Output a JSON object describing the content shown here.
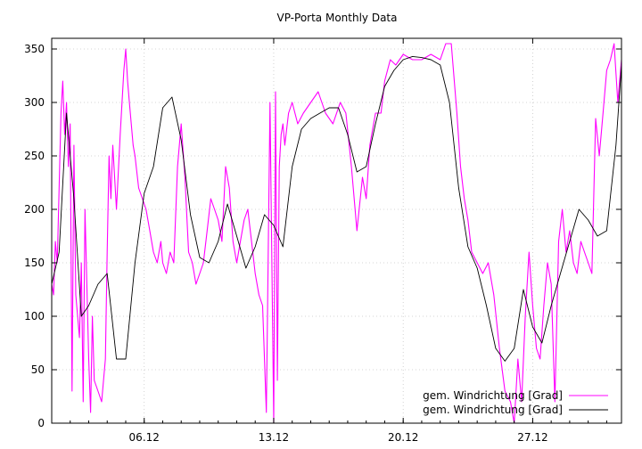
{
  "chart_data": {
    "type": "line",
    "title": "VP-Porta Monthly Data",
    "xlabel": "",
    "ylabel": "",
    "x_unit": "day of month (December)",
    "xlim": [
      1,
      31.8
    ],
    "ylim": [
      0,
      360
    ],
    "y_ticks": [
      0,
      50,
      100,
      150,
      200,
      250,
      300,
      350
    ],
    "x_ticks": [
      {
        "value": 6,
        "label": "06.12"
      },
      {
        "value": 13,
        "label": "13.12"
      },
      {
        "value": 20,
        "label": "20.12"
      },
      {
        "value": 27,
        "label": "27.12"
      }
    ],
    "grid": true,
    "legend_position": "bottom-right",
    "series": [
      {
        "name": "gem. Windrichtung [Grad]",
        "color": "#ff00ff",
        "style": "raw",
        "x": [
          1.0,
          1.1,
          1.2,
          1.3,
          1.5,
          1.6,
          1.7,
          1.8,
          1.9,
          2.0,
          2.1,
          2.2,
          2.3,
          2.5,
          2.6,
          2.7,
          2.8,
          2.9,
          3.0,
          3.1,
          3.2,
          3.3,
          3.5,
          3.7,
          3.9,
          4.0,
          4.1,
          4.2,
          4.3,
          4.5,
          4.7,
          4.9,
          5.0,
          5.1,
          5.2,
          5.3,
          5.4,
          5.5,
          5.7,
          5.9,
          6.1,
          6.3,
          6.5,
          6.7,
          6.9,
          7.0,
          7.2,
          7.4,
          7.6,
          7.8,
          8.0,
          8.2,
          8.4,
          8.6,
          8.8,
          9.0,
          9.2,
          9.4,
          9.6,
          9.8,
          10.0,
          10.2,
          10.4,
          10.6,
          10.8,
          11.0,
          11.2,
          11.4,
          11.6,
          11.8,
          12.0,
          12.2,
          12.4,
          12.6,
          12.8,
          13.0,
          13.1,
          13.2,
          13.3,
          13.4,
          13.5,
          13.6,
          13.8,
          14.0,
          14.3,
          14.6,
          15.0,
          15.4,
          15.8,
          16.2,
          16.6,
          16.9,
          17.2,
          17.5,
          17.8,
          18.0,
          18.2,
          18.5,
          18.8,
          19.0,
          19.3,
          19.6,
          20.0,
          20.5,
          21.0,
          21.5,
          22.0,
          22.3,
          22.6,
          22.9,
          23.1,
          23.3,
          23.5,
          23.7,
          24.0,
          24.3,
          24.6,
          24.9,
          25.2,
          25.5,
          25.8,
          26.0,
          26.2,
          26.4,
          26.6,
          26.8,
          27.0,
          27.2,
          27.4,
          27.6,
          27.8,
          28.0,
          28.2,
          28.4,
          28.6,
          28.8,
          29.0,
          29.2,
          29.4,
          29.6,
          29.8,
          30.0,
          30.2,
          30.4,
          30.6,
          30.8,
          31.0,
          31.2,
          31.4,
          31.6,
          31.7,
          31.8
        ],
        "values": [
          130,
          120,
          170,
          150,
          290,
          320,
          270,
          300,
          240,
          280,
          30,
          260,
          120,
          80,
          150,
          20,
          200,
          130,
          60,
          10,
          100,
          40,
          30,
          20,
          60,
          160,
          250,
          210,
          260,
          200,
          270,
          330,
          350,
          320,
          300,
          280,
          260,
          250,
          220,
          210,
          200,
          180,
          160,
          150,
          170,
          150,
          140,
          160,
          150,
          240,
          280,
          230,
          160,
          150,
          130,
          140,
          150,
          180,
          210,
          200,
          190,
          170,
          240,
          220,
          170,
          150,
          170,
          190,
          200,
          170,
          140,
          120,
          110,
          10,
          300,
          0,
          310,
          40,
          240,
          270,
          280,
          260,
          290,
          300,
          280,
          290,
          300,
          310,
          290,
          280,
          300,
          290,
          240,
          180,
          230,
          210,
          260,
          290,
          290,
          320,
          340,
          335,
          345,
          340,
          340,
          345,
          340,
          355,
          355,
          290,
          240,
          210,
          190,
          160,
          150,
          140,
          150,
          120,
          70,
          30,
          20,
          0,
          60,
          20,
          100,
          160,
          110,
          70,
          60,
          110,
          150,
          130,
          20,
          170,
          200,
          160,
          180,
          150,
          140,
          170,
          160,
          150,
          140,
          285,
          250,
          290,
          330,
          340,
          355,
          300,
          320,
          340
        ],
        "mark": "line"
      },
      {
        "name": "gem. Windrichtung [Grad]",
        "color": "#000000",
        "style": "smoothed",
        "x": [
          1.0,
          1.4,
          1.8,
          2.2,
          2.6,
          3.0,
          3.5,
          4.0,
          4.5,
          5.0,
          5.5,
          6.0,
          6.5,
          7.0,
          7.5,
          8.0,
          8.5,
          9.0,
          9.5,
          10.0,
          10.5,
          11.0,
          11.5,
          12.0,
          12.5,
          13.0,
          13.5,
          14.0,
          14.5,
          15.0,
          15.5,
          16.0,
          16.5,
          17.0,
          17.5,
          18.0,
          18.5,
          19.0,
          19.5,
          20.0,
          20.5,
          21.0,
          21.5,
          22.0,
          22.5,
          23.0,
          23.5,
          24.0,
          24.5,
          25.0,
          25.5,
          26.0,
          26.5,
          27.0,
          27.5,
          28.0,
          28.5,
          29.0,
          29.5,
          30.0,
          30.5,
          31.0,
          31.5,
          31.8
        ],
        "values": [
          130,
          160,
          290,
          210,
          100,
          110,
          130,
          140,
          60,
          60,
          150,
          215,
          240,
          295,
          305,
          265,
          195,
          155,
          150,
          170,
          205,
          175,
          145,
          165,
          195,
          185,
          165,
          240,
          275,
          285,
          290,
          295,
          295,
          270,
          235,
          240,
          280,
          315,
          330,
          340,
          343,
          342,
          340,
          335,
          300,
          220,
          165,
          145,
          110,
          70,
          58,
          70,
          125,
          90,
          75,
          110,
          140,
          170,
          200,
          190,
          175,
          180,
          260,
          335
        ],
        "mark": "line"
      }
    ]
  }
}
